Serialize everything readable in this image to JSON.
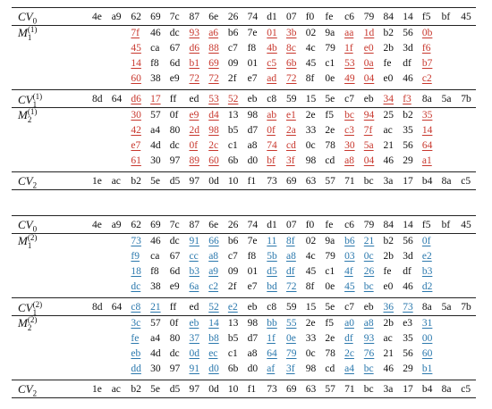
{
  "tables": [
    {
      "color": "#c8372d",
      "sections": [
        {
          "label": {
            "base": "CV",
            "sub": "0"
          },
          "rows": [
            [
              "4e",
              "a9",
              "62",
              "69",
              "7c",
              "87",
              "6e",
              "26",
              "74",
              "d1",
              "07",
              "f0",
              "fe",
              "c6",
              "79",
              "84",
              "14",
              "f5",
              "bf",
              "45"
            ]
          ],
          "marked": []
        },
        {
          "label": {
            "base": "M",
            "sub": "1",
            "sup": "(1)"
          },
          "rows": [
            [
              "7f",
              "46",
              "dc",
              "93",
              "a6",
              "b6",
              "7e",
              "01",
              "3b",
              "02",
              "9a",
              "aa",
              "1d",
              "b2",
              "56",
              "0b"
            ],
            [
              "45",
              "ca",
              "67",
              "d6",
              "88",
              "c7",
              "f8",
              "4b",
              "8c",
              "4c",
              "79",
              "1f",
              "e0",
              "2b",
              "3d",
              "f6"
            ],
            [
              "14",
              "f8",
              "6d",
              "b1",
              "69",
              "09",
              "01",
              "c5",
              "6b",
              "45",
              "c1",
              "53",
              "0a",
              "fe",
              "df",
              "b7"
            ],
            [
              "60",
              "38",
              "e9",
              "72",
              "72",
              "2f",
              "e7",
              "ad",
              "72",
              "8f",
              "0e",
              "49",
              "04",
              "e0",
              "46",
              "c2"
            ]
          ],
          "marked": [
            0,
            3,
            4,
            7,
            8,
            11,
            12,
            15
          ]
        },
        {
          "label": {
            "base": "CV",
            "sub": "1",
            "sup": "(1)"
          },
          "rows": [
            [
              "8d",
              "64",
              "d6",
              "17",
              "ff",
              "ed",
              "53",
              "52",
              "eb",
              "c8",
              "59",
              "15",
              "5e",
              "c7",
              "eb",
              "34",
              "f3",
              "8a",
              "5a",
              "7b"
            ]
          ],
          "marked": [
            2,
            3,
            6,
            7,
            15,
            16
          ]
        },
        {
          "label": {
            "base": "M",
            "sub": "2",
            "sup": "(1)"
          },
          "rows": [
            [
              "30",
              "57",
              "0f",
              "e9",
              "d4",
              "13",
              "98",
              "ab",
              "e1",
              "2e",
              "f5",
              "bc",
              "94",
              "25",
              "b2",
              "35"
            ],
            [
              "42",
              "a4",
              "80",
              "2d",
              "98",
              "b5",
              "d7",
              "0f",
              "2a",
              "33",
              "2e",
              "c3",
              "7f",
              "ac",
              "35",
              "14"
            ],
            [
              "e7",
              "4d",
              "dc",
              "0f",
              "2c",
              "c1",
              "a8",
              "74",
              "cd",
              "0c",
              "78",
              "30",
              "5a",
              "21",
              "56",
              "64"
            ],
            [
              "61",
              "30",
              "97",
              "89",
              "60",
              "6b",
              "d0",
              "bf",
              "3f",
              "98",
              "cd",
              "a8",
              "04",
              "46",
              "29",
              "a1"
            ]
          ],
          "marked": [
            0,
            3,
            4,
            7,
            8,
            11,
            12,
            15
          ]
        },
        {
          "label": {
            "base": "CV",
            "sub": "2"
          },
          "rows": [
            [
              "1e",
              "ac",
              "b2",
              "5e",
              "d5",
              "97",
              "0d",
              "10",
              "f1",
              "73",
              "69",
              "63",
              "57",
              "71",
              "bc",
              "3a",
              "17",
              "b4",
              "8a",
              "c5"
            ]
          ],
          "marked": []
        }
      ]
    },
    {
      "color": "#2a78ad",
      "sections": [
        {
          "label": {
            "base": "CV",
            "sub": "0"
          },
          "rows": [
            [
              "4e",
              "a9",
              "62",
              "69",
              "7c",
              "87",
              "6e",
              "26",
              "74",
              "d1",
              "07",
              "f0",
              "fe",
              "c6",
              "79",
              "84",
              "14",
              "f5",
              "bf",
              "45"
            ]
          ],
          "marked": []
        },
        {
          "label": {
            "base": "M",
            "sub": "1",
            "sup": "(2)"
          },
          "rows": [
            [
              "73",
              "46",
              "dc",
              "91",
              "66",
              "b6",
              "7e",
              "11",
              "8f",
              "02",
              "9a",
              "b6",
              "21",
              "b2",
              "56",
              "0f"
            ],
            [
              "f9",
              "ca",
              "67",
              "cc",
              "a8",
              "c7",
              "f8",
              "5b",
              "a8",
              "4c",
              "79",
              "03",
              "0c",
              "2b",
              "3d",
              "e2"
            ],
            [
              "18",
              "f8",
              "6d",
              "b3",
              "a9",
              "09",
              "01",
              "d5",
              "df",
              "45",
              "c1",
              "4f",
              "26",
              "fe",
              "df",
              "b3"
            ],
            [
              "dc",
              "38",
              "e9",
              "6a",
              "c2",
              "2f",
              "e7",
              "bd",
              "72",
              "8f",
              "0e",
              "45",
              "bc",
              "e0",
              "46",
              "d2"
            ]
          ],
          "marked": [
            0,
            3,
            4,
            7,
            8,
            11,
            12,
            15
          ]
        },
        {
          "label": {
            "base": "CV",
            "sub": "1",
            "sup": "(2)"
          },
          "rows": [
            [
              "8d",
              "64",
              "c8",
              "21",
              "ff",
              "ed",
              "52",
              "e2",
              "eb",
              "c8",
              "59",
              "15",
              "5e",
              "c7",
              "eb",
              "36",
              "73",
              "8a",
              "5a",
              "7b"
            ]
          ],
          "marked": [
            2,
            3,
            6,
            7,
            15,
            16
          ]
        },
        {
          "label": {
            "base": "M",
            "sub": "2",
            "sup": "(2)"
          },
          "rows": [
            [
              "3c",
              "57",
              "0f",
              "eb",
              "14",
              "13",
              "98",
              "bb",
              "55",
              "2e",
              "f5",
              "a0",
              "a8",
              "2b",
              "e3",
              "31"
            ],
            [
              "fe",
              "a4",
              "80",
              "37",
              "b8",
              "b5",
              "d7",
              "1f",
              "0e",
              "33",
              "2e",
              "df",
              "93",
              "ac",
              "35",
              "00"
            ],
            [
              "eb",
              "4d",
              "dc",
              "0d",
              "ec",
              "c1",
              "a8",
              "64",
              "79",
              "0c",
              "78",
              "2c",
              "76",
              "21",
              "56",
              "60"
            ],
            [
              "dd",
              "30",
              "97",
              "91",
              "d0",
              "6b",
              "d0",
              "af",
              "3f",
              "98",
              "cd",
              "a4",
              "bc",
              "46",
              "29",
              "b1"
            ]
          ],
          "marked": [
            0,
            3,
            4,
            7,
            8,
            11,
            12,
            15
          ]
        },
        {
          "label": {
            "base": "CV",
            "sub": "2"
          },
          "rows": [
            [
              "1e",
              "ac",
              "b2",
              "5e",
              "d5",
              "97",
              "0d",
              "10",
              "f1",
              "73",
              "69",
              "63",
              "57",
              "71",
              "bc",
              "3a",
              "17",
              "b4",
              "8a",
              "c5"
            ]
          ],
          "marked": []
        }
      ]
    }
  ]
}
